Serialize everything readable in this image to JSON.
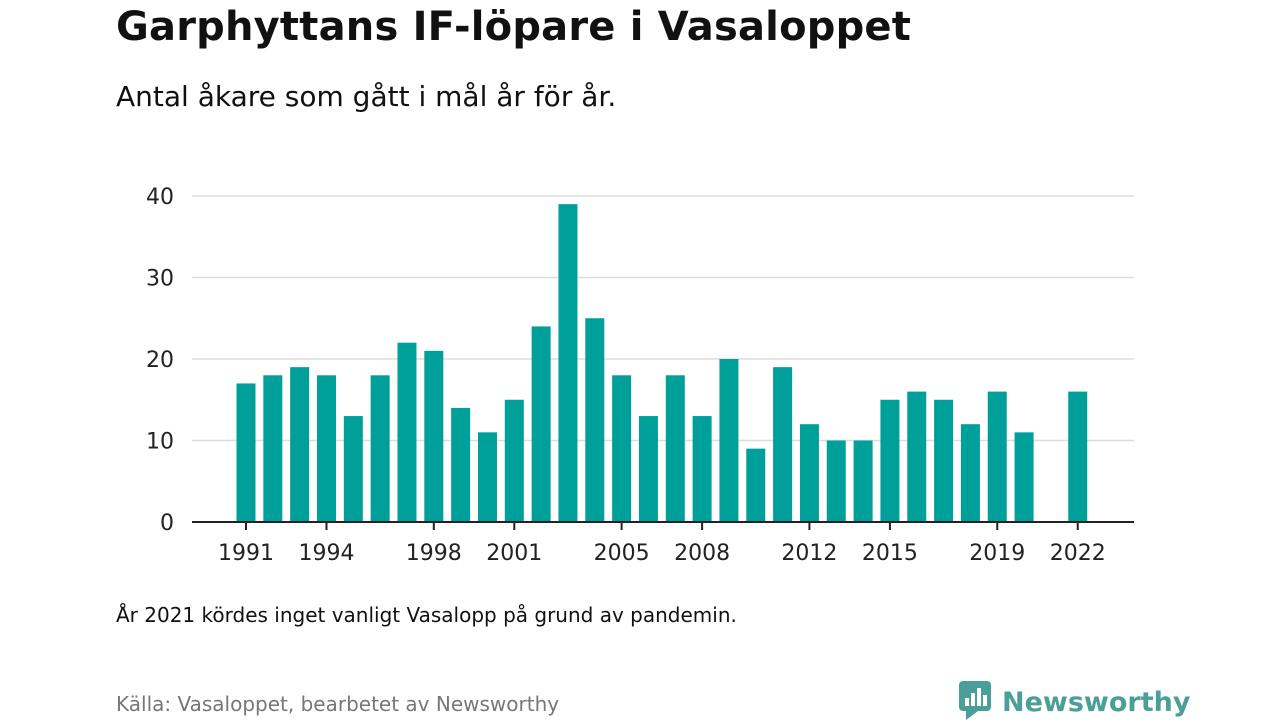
{
  "header": {
    "title": "Garphyttans IF-löpare i Vasaloppet",
    "subtitle": "Antal åkare som gått i mål år för år."
  },
  "footer": {
    "note": "År 2021 kördes inget vanligt Vasalopp på grund av pandemin.",
    "source": "Källa: Vasaloppet, bearbetet av Newsworthy",
    "brand": "Newsworthy"
  },
  "colors": {
    "bar": "#00a09a",
    "grid": "#dddddd",
    "axis": "#222222",
    "brand": "#4a9f98"
  },
  "icons": {
    "brand_logo": "newsworthy-bar-chart-bubble-icon"
  },
  "chart_data": {
    "type": "bar",
    "x": [
      1991,
      1992,
      1993,
      1994,
      1995,
      1996,
      1997,
      1998,
      1999,
      2000,
      2001,
      2002,
      2003,
      2004,
      2005,
      2006,
      2007,
      2008,
      2009,
      2010,
      2011,
      2012,
      2013,
      2014,
      2015,
      2016,
      2017,
      2018,
      2019,
      2020,
      2021,
      2022
    ],
    "values": [
      17,
      18,
      19,
      18,
      13,
      18,
      22,
      21,
      14,
      11,
      15,
      24,
      39,
      25,
      18,
      13,
      18,
      13,
      20,
      9,
      19,
      12,
      10,
      10,
      15,
      16,
      15,
      12,
      16,
      11,
      null,
      16
    ],
    "x_tick_labels": [
      "1991",
      "1994",
      "1998",
      "2001",
      "2005",
      "2008",
      "2012",
      "2015",
      "2019",
      "2022"
    ],
    "y_ticks": [
      0,
      10,
      20,
      30,
      40
    ],
    "ylim": [
      0,
      40
    ],
    "grid": true,
    "legend": "none"
  }
}
